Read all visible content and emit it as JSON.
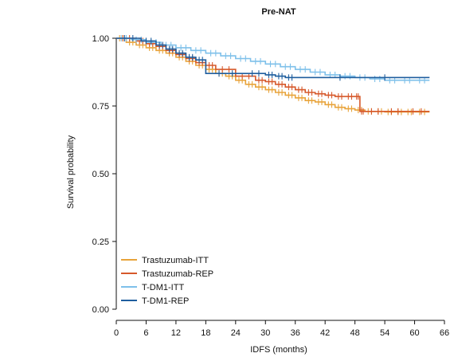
{
  "chart_data": {
    "type": "line",
    "subtype": "kaplan-meier",
    "title": "Pre-NAT",
    "xlabel": "IDFS (months)",
    "ylabel": "Survival probability",
    "xlim": [
      0,
      66
    ],
    "ylim": [
      0,
      1
    ],
    "xticks": [
      0,
      6,
      12,
      18,
      24,
      30,
      36,
      42,
      48,
      54,
      60,
      66
    ],
    "yticks": [
      "0.00",
      "0.25",
      "0.50",
      "0.75",
      "1.00"
    ],
    "grid": false,
    "legend_position": "bottom-left",
    "series": [
      {
        "name": "Trastuzumab-ITT",
        "color": "#E8A33A",
        "censor_marks": true,
        "x": [
          0,
          2,
          4,
          6,
          8,
          10,
          12,
          14,
          16,
          18,
          20,
          22,
          24,
          26,
          28,
          30,
          32,
          34,
          36,
          38,
          40,
          42,
          44,
          46,
          48,
          50,
          52,
          54,
          56,
          58,
          60,
          63
        ],
        "y": [
          1.0,
          0.985,
          0.975,
          0.965,
          0.955,
          0.945,
          0.93,
          0.915,
          0.9,
          0.885,
          0.87,
          0.86,
          0.845,
          0.83,
          0.82,
          0.81,
          0.8,
          0.79,
          0.78,
          0.77,
          0.765,
          0.755,
          0.745,
          0.74,
          0.735,
          0.73,
          0.73,
          0.728,
          0.728,
          0.728,
          0.728,
          0.728
        ]
      },
      {
        "name": "Trastuzumab-REP",
        "color": "#D6582A",
        "censor_marks": true,
        "x": [
          0,
          4,
          6,
          8,
          10,
          12,
          14,
          16,
          18,
          20,
          24,
          28,
          30,
          32,
          34,
          36,
          38,
          40,
          42,
          44,
          46,
          48,
          49,
          50,
          54,
          58,
          63
        ],
        "y": [
          1.0,
          0.99,
          0.98,
          0.97,
          0.955,
          0.94,
          0.925,
          0.91,
          0.9,
          0.885,
          0.86,
          0.845,
          0.84,
          0.83,
          0.82,
          0.81,
          0.8,
          0.795,
          0.79,
          0.785,
          0.785,
          0.785,
          0.73,
          0.73,
          0.73,
          0.73,
          0.73
        ]
      },
      {
        "name": "T-DM1-ITT",
        "color": "#7EC0EA",
        "censor_marks": true,
        "x": [
          0,
          3,
          6,
          9,
          12,
          15,
          18,
          21,
          24,
          27,
          30,
          33,
          36,
          39,
          42,
          45,
          48,
          51,
          54,
          57,
          60,
          63
        ],
        "y": [
          1.0,
          0.995,
          0.985,
          0.975,
          0.965,
          0.955,
          0.945,
          0.935,
          0.925,
          0.915,
          0.905,
          0.895,
          0.885,
          0.875,
          0.865,
          0.86,
          0.855,
          0.85,
          0.845,
          0.845,
          0.845,
          0.845
        ]
      },
      {
        "name": "T-DM1-REP",
        "color": "#1F5E9E",
        "censor_marks": true,
        "x": [
          0,
          5,
          8,
          10,
          12,
          14,
          16,
          18,
          26,
          30,
          32,
          34,
          36,
          63
        ],
        "y": [
          1.0,
          0.99,
          0.975,
          0.96,
          0.945,
          0.93,
          0.92,
          0.87,
          0.87,
          0.865,
          0.86,
          0.855,
          0.855,
          0.855
        ]
      }
    ]
  }
}
